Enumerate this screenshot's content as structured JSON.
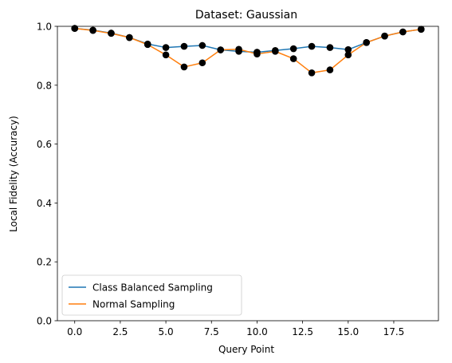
{
  "chart_data": {
    "type": "line",
    "title": "Dataset: Gaussian",
    "xlabel": "Query Point",
    "ylabel": "Local Fidelity (Accuracy)",
    "xlim": [
      -0.95,
      19.95
    ],
    "ylim": [
      0.0,
      1.0
    ],
    "xticks": [
      0.0,
      2.5,
      5.0,
      7.5,
      10.0,
      12.5,
      15.0,
      17.5
    ],
    "xtick_labels": [
      "0.0",
      "2.5",
      "5.0",
      "7.5",
      "10.0",
      "12.5",
      "15.0",
      "17.5"
    ],
    "yticks": [
      0.0,
      0.2,
      0.4,
      0.6,
      0.8,
      1.0
    ],
    "ytick_labels": [
      "0.0",
      "0.2",
      "0.4",
      "0.6",
      "0.8",
      "1.0"
    ],
    "grid": false,
    "legend_position": "lower-left",
    "marker_color": "#000000",
    "x": [
      0,
      1,
      2,
      3,
      4,
      5,
      6,
      7,
      8,
      9,
      10,
      11,
      12,
      13,
      14,
      15,
      16,
      17,
      18,
      19
    ],
    "series": [
      {
        "name": "Class Balanced Sampling",
        "color": "#1f77b4",
        "values": [
          0.993,
          0.987,
          0.977,
          0.962,
          0.94,
          0.928,
          0.932,
          0.935,
          0.92,
          0.915,
          0.912,
          0.918,
          0.924,
          0.932,
          0.928,
          0.921,
          0.945,
          0.967,
          0.981,
          0.99
        ]
      },
      {
        "name": "Normal Sampling",
        "color": "#ff7f0e",
        "values": [
          0.993,
          0.986,
          0.976,
          0.962,
          0.938,
          0.903,
          0.862,
          0.876,
          0.92,
          0.922,
          0.906,
          0.915,
          0.89,
          0.842,
          0.852,
          0.903,
          0.945,
          0.967,
          0.981,
          0.99
        ]
      }
    ]
  }
}
